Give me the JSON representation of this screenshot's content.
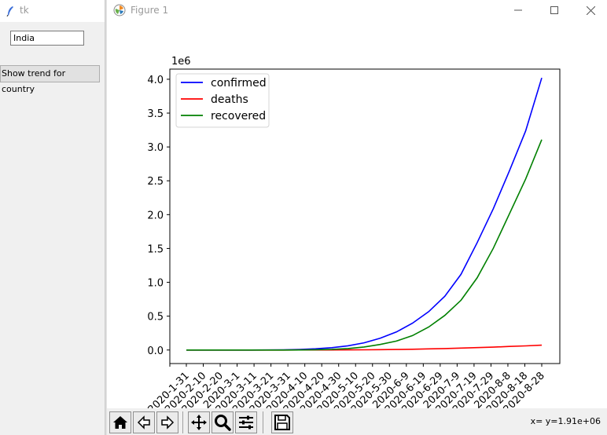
{
  "tk_window": {
    "title": "tk",
    "country_value": "India",
    "button_label": "Show trend for country"
  },
  "figure_window": {
    "title": "Figure 1",
    "coords_text": "x= y=1.91e+06"
  },
  "toolbar": {
    "buttons": [
      "home-icon",
      "back-icon",
      "forward-icon",
      "pan-icon",
      "zoom-icon",
      "configure-subplots-icon",
      "save-icon"
    ]
  },
  "chart_data": {
    "type": "line",
    "offset_label": "1e6",
    "ylim": [
      -0.2,
      4.15
    ],
    "yticks": [
      0.0,
      0.5,
      1.0,
      1.5,
      2.0,
      2.5,
      3.0,
      3.5,
      4.0
    ],
    "ytick_labels": [
      "0.0",
      "0.5",
      "1.0",
      "1.5",
      "2.0",
      "2.5",
      "3.0",
      "3.5",
      "4.0"
    ],
    "xlabels": [
      "2020-1-31",
      "2020-2-10",
      "2020-2-20",
      "2020-3-1",
      "2020-3-11",
      "2020-3-21",
      "2020-3-31",
      "2020-4-10",
      "2020-4-20",
      "2020-4-30",
      "2020-5-10",
      "2020-5-20",
      "2020-5-30",
      "2020-6-9",
      "2020-6-19",
      "2020-6-29",
      "2020-7-9",
      "2020-7-19",
      "2020-7-29",
      "2020-8-8",
      "2020-8-18",
      "2020-8-28"
    ],
    "legend_position": "upper left",
    "series": [
      {
        "name": "confirmed",
        "color": "#0000ff",
        "values": [
          0.0,
          0.0,
          0.0,
          0.0,
          0.0,
          0.0002,
          0.0016,
          0.0071,
          0.018,
          0.034,
          0.062,
          0.106,
          0.173,
          0.266,
          0.396,
          0.567,
          0.794,
          1.118,
          1.584,
          2.088,
          2.647,
          3.236,
          4.02
        ]
      },
      {
        "name": "deaths",
        "color": "#ff0000",
        "values": [
          0.0,
          0.0,
          0.0,
          0.0,
          0.0,
          0.0,
          0.0,
          0.0002,
          0.0006,
          0.0011,
          0.002,
          0.0033,
          0.005,
          0.0075,
          0.0112,
          0.0166,
          0.0216,
          0.028,
          0.0355,
          0.0426,
          0.0525,
          0.0611,
          0.071
        ]
      },
      {
        "name": "recovered",
        "color": "#008000",
        "values": [
          0.0,
          0.0,
          0.0,
          0.0,
          0.0,
          0.0,
          0.0001,
          0.0008,
          0.0038,
          0.0102,
          0.0218,
          0.0452,
          0.0822,
          0.132,
          0.213,
          0.339,
          0.511,
          0.735,
          1.066,
          1.503,
          2.012,
          2.525,
          3.108
        ]
      }
    ]
  }
}
